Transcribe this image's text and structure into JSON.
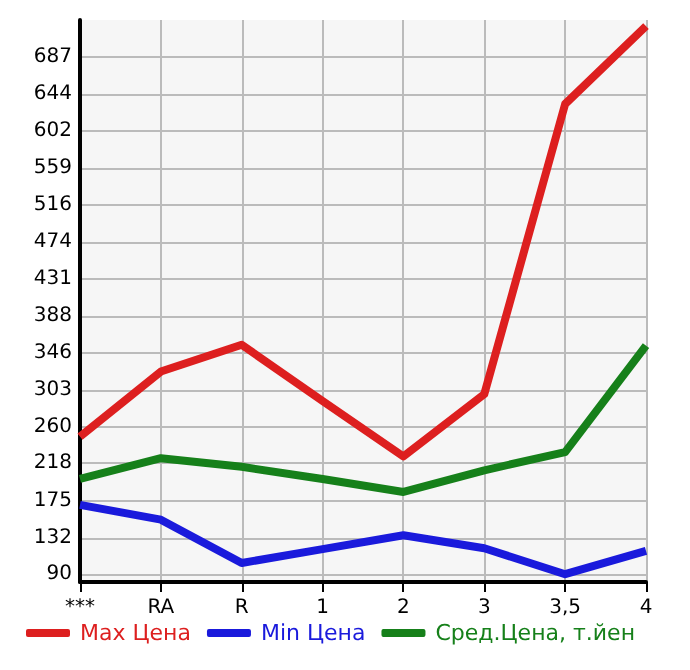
{
  "chart_data": {
    "type": "line",
    "categories": [
      "***",
      "RA",
      "R",
      "1",
      "2",
      "3",
      "3,5",
      "4"
    ],
    "series": [
      {
        "name": "Max Цена",
        "color": "#dd1f1f",
        "values": [
          249,
          324,
          355,
          290,
          226,
          298,
          633,
          723
        ]
      },
      {
        "name": "Min Цена",
        "color": "#1a1adc",
        "values": [
          170,
          153,
          103,
          119,
          135,
          120,
          90,
          117
        ]
      },
      {
        "name": "Сред.Цена, т.йен",
        "color": "#16801a",
        "values": [
          200,
          224,
          214,
          200,
          185,
          210,
          231,
          354
        ]
      }
    ],
    "ylim": [
      81,
      730
    ],
    "yticks": [
      90,
      132,
      175,
      218,
      260,
      303,
      346,
      388,
      431,
      474,
      516,
      559,
      602,
      644,
      687
    ],
    "grid": true,
    "legend": "bottom",
    "marker": "none",
    "line_style": "solid"
  }
}
